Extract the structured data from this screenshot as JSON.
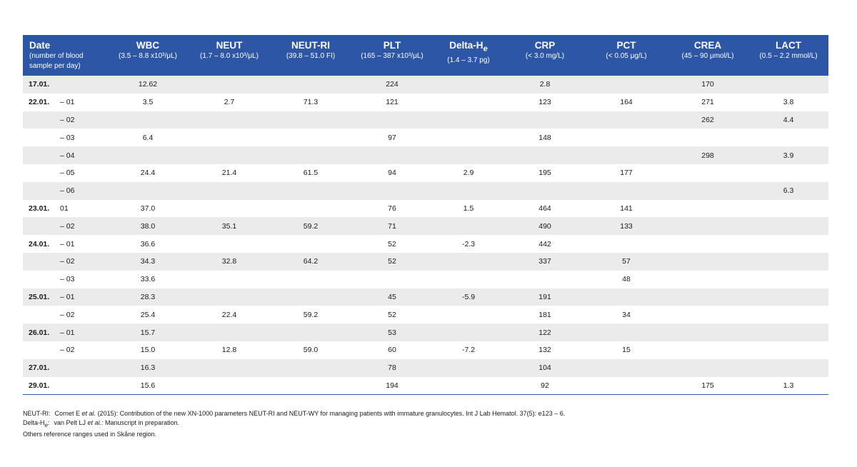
{
  "columns": [
    {
      "key": "date",
      "title": "Date",
      "subtitle": "(number of blood sample per day)"
    },
    {
      "key": "wbc",
      "title": "WBC",
      "subtitle": "(3.5 – 8.8 x10³/μL)"
    },
    {
      "key": "neut",
      "title": "NEUT",
      "subtitle": "(1.7 – 8.0 x10³/μL)"
    },
    {
      "key": "neutri",
      "title": "NEUT-RI",
      "subtitle": "(39.8 – 51.0 FI)"
    },
    {
      "key": "plt",
      "title": "PLT",
      "subtitle": "(165 – 387 x10³/μL)"
    },
    {
      "key": "deltahe",
      "title": "Delta-H",
      "title_sub": "e",
      "subtitle": "(1.4 – 3.7 pg)"
    },
    {
      "key": "crp",
      "title": "CRP",
      "subtitle": "(< 3.0 mg/L)"
    },
    {
      "key": "pct",
      "title": "PCT",
      "subtitle": "(< 0.05 μg/L)"
    },
    {
      "key": "crea",
      "title": "CREA",
      "subtitle": "(45 – 90 μmol/L)"
    },
    {
      "key": "lact",
      "title": "LACT",
      "subtitle": "(0.5 – 2.2 mmol/L)"
    }
  ],
  "rows": [
    {
      "day": "17.01.",
      "sample": "",
      "wbc": "12.62",
      "neut": "",
      "neutri": "",
      "plt": "224",
      "deltahe": "",
      "crp": "2.8",
      "pct": "",
      "crea": "170",
      "lact": ""
    },
    {
      "day": "22.01.",
      "sample": "– 01",
      "wbc": "3.5",
      "neut": "2.7",
      "neutri": "71.3",
      "plt": "121",
      "deltahe": "",
      "crp": "123",
      "pct": "164",
      "crea": "271",
      "lact": "3.8"
    },
    {
      "day": "",
      "sample": "– 02",
      "wbc": "",
      "neut": "",
      "neutri": "",
      "plt": "",
      "deltahe": "",
      "crp": "",
      "pct": "",
      "crea": "262",
      "lact": "4.4"
    },
    {
      "day": "",
      "sample": "– 03",
      "wbc": "6.4",
      "neut": "",
      "neutri": "",
      "plt": "97",
      "deltahe": "",
      "crp": "148",
      "pct": "",
      "crea": "",
      "lact": ""
    },
    {
      "day": "",
      "sample": "– 04",
      "wbc": "",
      "neut": "",
      "neutri": "",
      "plt": "",
      "deltahe": "",
      "crp": "",
      "pct": "",
      "crea": "298",
      "lact": "3.9"
    },
    {
      "day": "",
      "sample": "– 05",
      "wbc": "24.4",
      "neut": "21.4",
      "neutri": "61.5",
      "plt": "94",
      "deltahe": "2.9",
      "crp": "195",
      "pct": "177",
      "crea": "",
      "lact": ""
    },
    {
      "day": "",
      "sample": "– 06",
      "wbc": "",
      "neut": "",
      "neutri": "",
      "plt": "",
      "deltahe": "",
      "crp": "",
      "pct": "",
      "crea": "",
      "lact": "6.3"
    },
    {
      "day": "23.01.",
      "sample": " 01",
      "wbc": "37.0",
      "neut": "",
      "neutri": "",
      "plt": "76",
      "deltahe": "1.5",
      "crp": "464",
      "pct": "141",
      "crea": "",
      "lact": ""
    },
    {
      "day": "",
      "sample": "– 02",
      "wbc": "38.0",
      "neut": "35.1",
      "neutri": "59.2",
      "plt": "71",
      "deltahe": "",
      "crp": "490",
      "pct": "133",
      "crea": "",
      "lact": ""
    },
    {
      "day": "24.01.",
      "sample": "– 01",
      "wbc": "36.6",
      "neut": "",
      "neutri": "",
      "plt": "52",
      "deltahe": "-2.3",
      "crp": "442",
      "pct": "",
      "crea": "",
      "lact": ""
    },
    {
      "day": "",
      "sample": "– 02",
      "wbc": "34.3",
      "neut": "32.8",
      "neutri": "64.2",
      "plt": "52",
      "deltahe": "",
      "crp": "337",
      "pct": "57",
      "crea": "",
      "lact": ""
    },
    {
      "day": "",
      "sample": "– 03",
      "wbc": "33.6",
      "neut": "",
      "neutri": "",
      "plt": "",
      "deltahe": "",
      "crp": "",
      "pct": "48",
      "crea": "",
      "lact": ""
    },
    {
      "day": "25.01.",
      "sample": "– 01",
      "wbc": "28.3",
      "neut": "",
      "neutri": "",
      "plt": "45",
      "deltahe": "-5.9",
      "crp": "191",
      "pct": "",
      "crea": "",
      "lact": ""
    },
    {
      "day": "",
      "sample": "– 02",
      "wbc": "25.4",
      "neut": "22.4",
      "neutri": "59.2",
      "plt": "52",
      "deltahe": "",
      "crp": "181",
      "pct": "34",
      "crea": "",
      "lact": ""
    },
    {
      "day": "26.01.",
      "sample": "– 01",
      "wbc": "15.7",
      "neut": "",
      "neutri": "",
      "plt": "53",
      "deltahe": "",
      "crp": "122",
      "pct": "",
      "crea": "",
      "lact": ""
    },
    {
      "day": "",
      "sample": "– 02",
      "wbc": "15.0",
      "neut": "12.8",
      "neutri": "59.0",
      "plt": "60",
      "deltahe": "-7.2",
      "crp": "132",
      "pct": "15",
      "crea": "",
      "lact": ""
    },
    {
      "day": "27.01.",
      "sample": "",
      "wbc": "16.3",
      "neut": "",
      "neutri": "",
      "plt": "78",
      "deltahe": "",
      "crp": "104",
      "pct": "",
      "crea": "",
      "lact": ""
    },
    {
      "day": "29.01.",
      "sample": "",
      "wbc": "15.6",
      "neut": "",
      "neutri": "",
      "plt": "194",
      "deltahe": "",
      "crp": "92",
      "pct": "",
      "crea": "175",
      "lact": "1.3"
    }
  ],
  "footnotes": {
    "neutri_label": "NEUT-RI:",
    "neutri_text_1": "Cornet E ",
    "neutri_text_etal": "et al.",
    "neutri_text_2": " (2015): Contribution of the new XN-1000 parameters NEUT-RI and NEUT-WY for managing patients with immature granulocytes. Int J Lab Hematol. 37(5): e123 – 6.",
    "deltahe_label": "Delta-H",
    "deltahe_label_sub": "e",
    "deltahe_label_colon": ":",
    "deltahe_text_1": "van Pelt LJ ",
    "deltahe_text_etal": "et al.:",
    "deltahe_text_2": " Manuscript in preparation.",
    "others": "Others reference ranges used in Skåne region."
  },
  "colors": {
    "header_bg": "#2d56a6",
    "stripe": "#ebebeb"
  }
}
